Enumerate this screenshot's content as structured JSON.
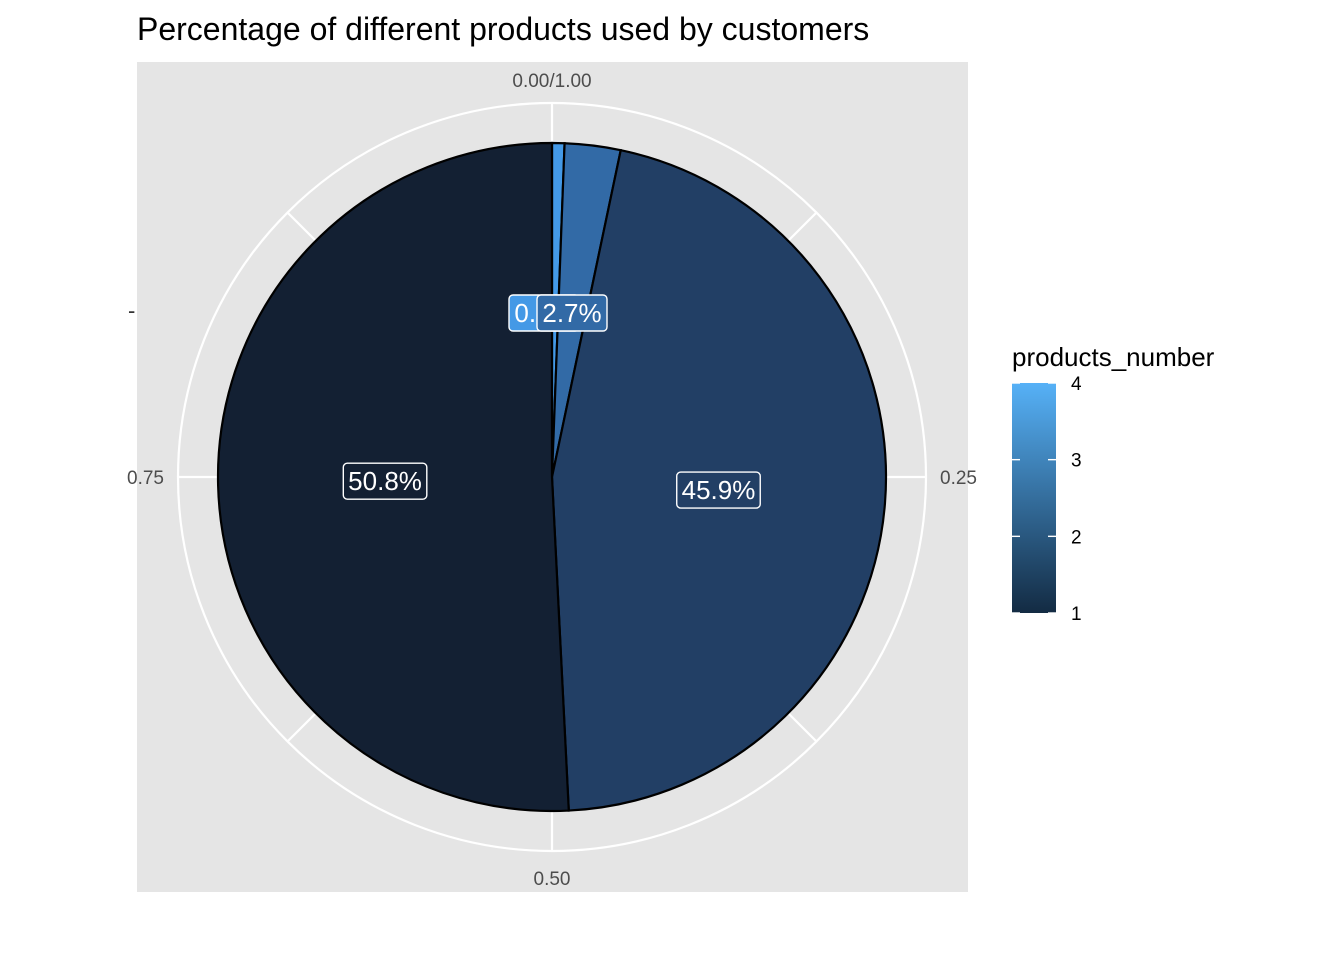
{
  "chart_data": {
    "type": "pie",
    "title": "Percentage of  different products used by customers",
    "ylabel": "-",
    "theta_ticks": [
      {
        "value": 0,
        "label": "0.00/1.00"
      },
      {
        "value": 0.25,
        "label": "0.25"
      },
      {
        "value": 0.5,
        "label": "0.50"
      },
      {
        "value": 0.75,
        "label": "0.75"
      }
    ],
    "slices": [
      {
        "products_number": 4,
        "fraction": 0.006,
        "label": "0.6%",
        "color": "#4499e6"
      },
      {
        "products_number": 3,
        "fraction": 0.027,
        "label": "2.7%",
        "color": "#326aa6"
      },
      {
        "products_number": 2,
        "fraction": 0.459,
        "label": "45.9%",
        "color": "#223f65"
      },
      {
        "products_number": 1,
        "fraction": 0.508,
        "label": "50.8%",
        "color": "#132033"
      }
    ],
    "legend": {
      "title": "products_number",
      "placement": "right",
      "ticks": [
        "4",
        "3",
        "2",
        "1"
      ],
      "gradient": {
        "low": "#132b43",
        "high": "#56b1f7"
      }
    },
    "panel_background": "#e5e5e5",
    "grid_color": "#ffffff"
  }
}
